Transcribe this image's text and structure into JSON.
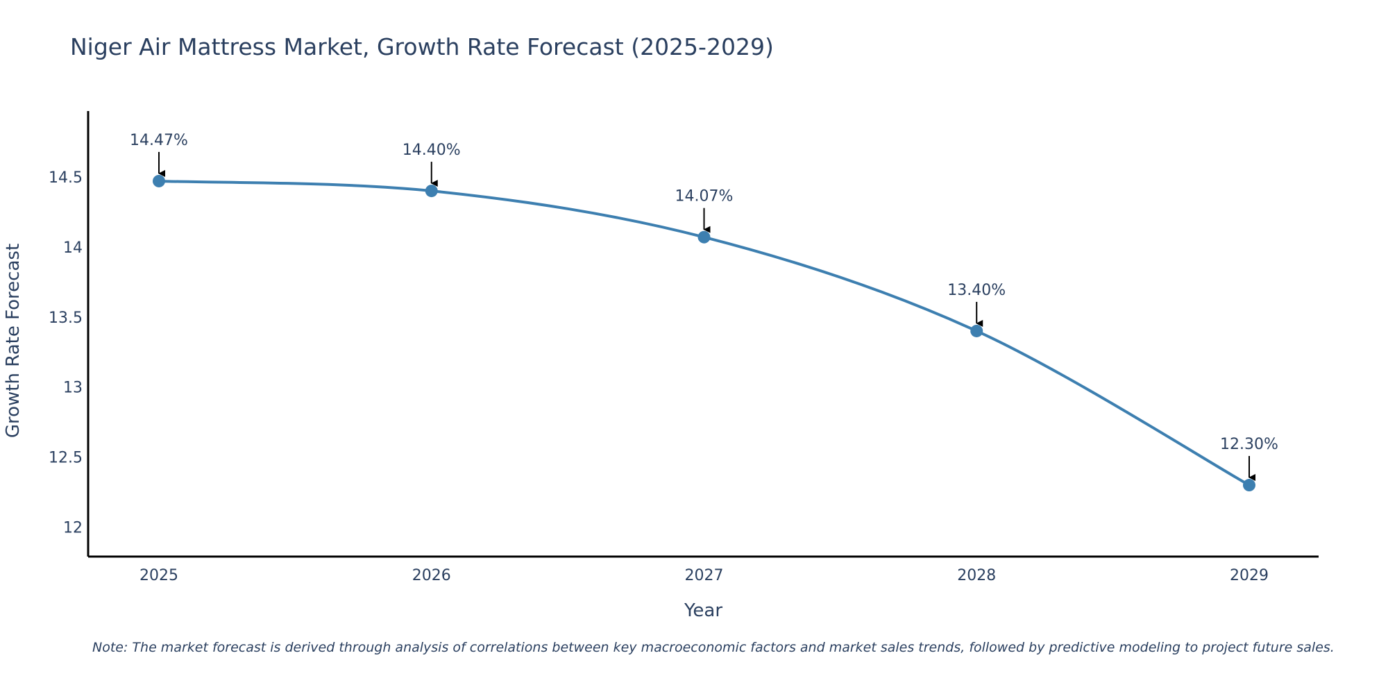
{
  "chart_data": {
    "type": "line",
    "title": "Niger Air Mattress Market, Growth Rate Forecast (2025-2029)",
    "xlabel": "Year",
    "ylabel": "Growth Rate Forecast",
    "categories": [
      "2025",
      "2026",
      "2027",
      "2028",
      "2029"
    ],
    "values": [
      14.47,
      14.4,
      14.07,
      13.4,
      12.3
    ],
    "data_labels": [
      "14.47%",
      "14.40%",
      "14.07%",
      "13.40%",
      "12.30%"
    ],
    "y_ticks": [
      12,
      12.5,
      13,
      13.5,
      14,
      14.5
    ],
    "y_tick_labels": [
      "12",
      "12.5",
      "13",
      "13.5",
      "14",
      "14.5"
    ],
    "ylim": [
      11.79,
      14.97
    ],
    "line_color": "#3d7fb0",
    "marker_color": "#3d7fb0",
    "grid": false
  },
  "note": "Note: The market forecast is derived through analysis of correlations between key macroeconomic factors and market sales trends, followed by predictive modeling to project future sales."
}
